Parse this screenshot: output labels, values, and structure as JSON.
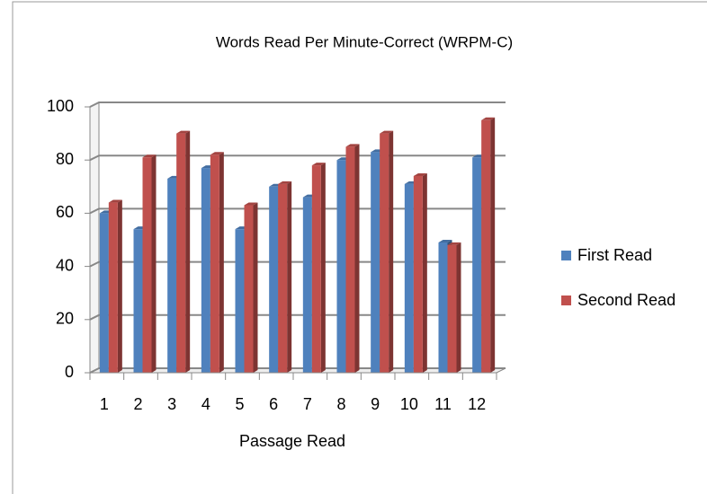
{
  "chart_data": {
    "type": "bar",
    "title": "Words Read Per Minute-Correct (WRPM-C)",
    "x_label": "Passage Read",
    "categories": [
      "1",
      "2",
      "3",
      "4",
      "5",
      "6",
      "7",
      "8",
      "9",
      "10",
      "11",
      "12"
    ],
    "series": [
      {
        "name": "First Read",
        "color": "#4f81bd",
        "values": [
          60,
          54,
          73,
          77,
          54,
          70,
          66,
          80,
          83,
          71,
          49,
          81
        ]
      },
      {
        "name": "Second Read",
        "color": "#c0504d",
        "values": [
          64,
          81,
          90,
          82,
          63,
          71,
          78,
          85,
          90,
          74,
          48,
          95
        ]
      }
    ],
    "ylim": [
      0,
      100
    ],
    "yticks": [
      0,
      20,
      40,
      60,
      80,
      100
    ],
    "grid": true,
    "legend": "right"
  }
}
